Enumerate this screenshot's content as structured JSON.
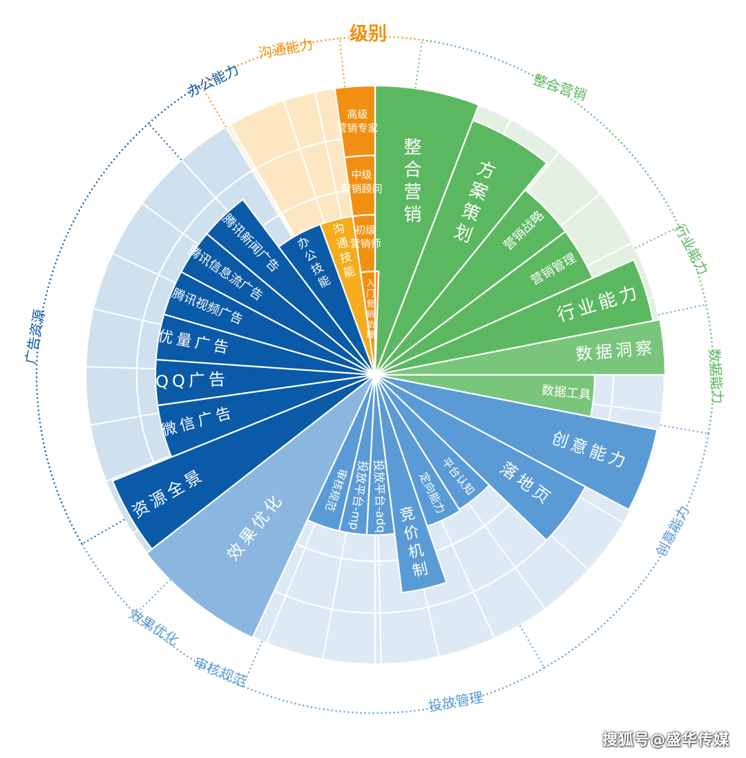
{
  "level_title": "级别",
  "colors": {
    "green": "#5cb860",
    "green_mid": "#79c57b",
    "green_light": "#e4f1e2",
    "orange": "#f18f12",
    "orange_mid": "#f6ac1c",
    "orange_light": "#fde7c2",
    "navy": "#0a5aa8",
    "navy_light": "#cfe1ef",
    "blue": "#5a9bd5",
    "blue_mid": "#8ab6e0",
    "blue_light": "#dde9f5"
  },
  "levels": {
    "expert": "高级\n营销专家",
    "consultant": "中级\n营销顾问",
    "junior": "初级\n营销师",
    "entry": "入门营销助理"
  },
  "outer_labels": [
    {
      "id": "comm",
      "text": "沟通能力"
    },
    {
      "id": "office",
      "text": "办公能力"
    },
    {
      "id": "integrated",
      "text": "整合营销"
    },
    {
      "id": "industry",
      "text": "行业能力"
    },
    {
      "id": "data",
      "text": "数据能力"
    },
    {
      "id": "creative",
      "text": "创意能力"
    },
    {
      "id": "delivery",
      "text": "投放管理"
    },
    {
      "id": "review",
      "text": "审核规范"
    },
    {
      "id": "effect",
      "text": "效果优化"
    },
    {
      "id": "adres",
      "text": "广告资源"
    }
  ],
  "segments": [
    {
      "id": "integ",
      "text": "整合营销"
    },
    {
      "id": "plan",
      "text": "方案策划"
    },
    {
      "id": "strategy",
      "text": "营销战略"
    },
    {
      "id": "mgmt",
      "text": "营销管理"
    },
    {
      "id": "industry",
      "text": "行业能力"
    },
    {
      "id": "insight",
      "text": "数据洞察"
    },
    {
      "id": "tools",
      "text": "数据工具"
    },
    {
      "id": "creative",
      "text": "创意能力"
    },
    {
      "id": "landing",
      "text": "落地页"
    },
    {
      "id": "platform",
      "text": "平台认知"
    },
    {
      "id": "target",
      "text": "定向能力"
    },
    {
      "id": "bid",
      "text": "竞价机制"
    },
    {
      "id": "adq",
      "text": "投放平台-adq"
    },
    {
      "id": "mp",
      "text": "投放平台-mp"
    },
    {
      "id": "audit",
      "text": "审核规范"
    },
    {
      "id": "effect",
      "text": "效果优化"
    },
    {
      "id": "panorama",
      "text": "资源全景"
    },
    {
      "id": "wechat",
      "text": "微信广告"
    },
    {
      "id": "qq",
      "text": "QQ广告"
    },
    {
      "id": "quality",
      "text": "优量广告"
    },
    {
      "id": "video",
      "text": "腾讯视频广告"
    },
    {
      "id": "feed",
      "text": "腾讯信息流广告"
    },
    {
      "id": "news",
      "text": "腾讯新闻广告"
    },
    {
      "id": "office",
      "text": "办公技能"
    },
    {
      "id": "comm",
      "text": "沟通技能"
    }
  ],
  "watermark": "搜狐号@盛华传媒"
}
